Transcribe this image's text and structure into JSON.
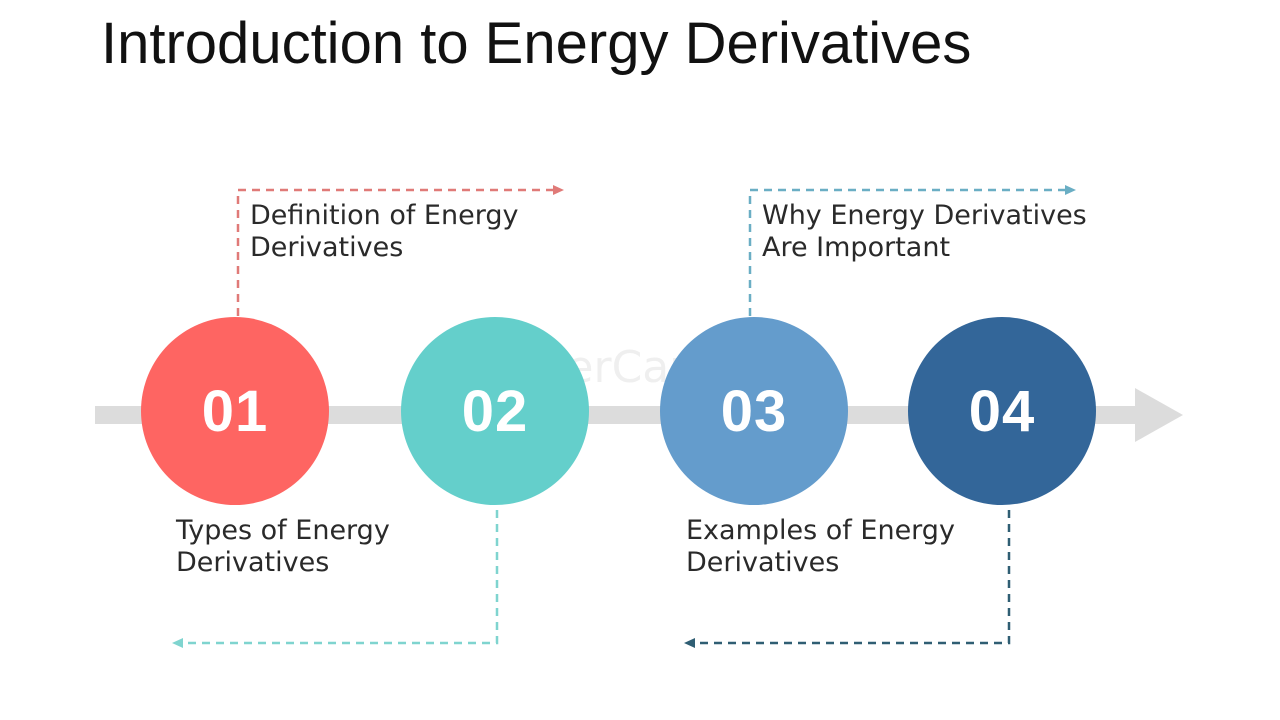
{
  "title": "Introduction to Energy Derivatives",
  "watermark": "FasterCapital",
  "steps": [
    {
      "number": "01",
      "color": "#fe6562",
      "label_line1": "Types of Energy",
      "label_line2": "Derivatives"
    },
    {
      "number": "02",
      "color": "#64cfcb",
      "label_line1": "Definition of Energy",
      "label_line2": "Derivatives"
    },
    {
      "number": "03",
      "color": "#649ccc",
      "label_line1": "Examples of Energy",
      "label_line2": "Derivatives"
    },
    {
      "number": "04",
      "color": "#336699",
      "label_line1": "Why Energy Derivatives",
      "label_line2": "Are Important"
    }
  ],
  "connector_colors": {
    "step1": "#e07a78",
    "step2": "#7fd4cf",
    "step3": "#6aaec4",
    "step4": "#2f5e73"
  },
  "axis_color": "#dcdcdc"
}
